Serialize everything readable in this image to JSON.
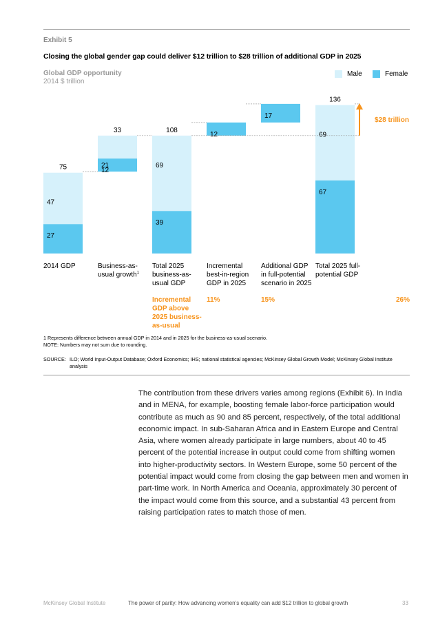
{
  "exhibit": {
    "label": "Exhibit 5",
    "title": "Closing the global gender gap could deliver $12 trillion to $28 trillion of additional GDP in 2025"
  },
  "colors": {
    "male": "#d6f1fb",
    "female": "#5bc8ef",
    "accent": "#f7941d",
    "text": "#000000"
  },
  "chart_data": {
    "type": "bar",
    "subtype": "waterfall",
    "title": "Global GDP opportunity",
    "unit": "2014 $ trillion",
    "legend": [
      "Male",
      "Female"
    ],
    "legend_position": "top-right",
    "categories": [
      "2014 GDP",
      "Business-as-usual growth",
      "Total 2025 business-as-usual GDP",
      "Incremental best-in-region GDP in 2025",
      "Additional GDP in full-potential scenario in 2025",
      "Total 2025 full-potential GDP"
    ],
    "category_lines": [
      [
        "2014 GDP"
      ],
      [
        "Business-as-",
        "usual growth"
      ],
      [
        "Total 2025",
        "business-as-",
        "usual GDP"
      ],
      [
        "Incremental",
        "best-in-region",
        "GDP in 2025"
      ],
      [
        "Additional GDP",
        "in full-potential",
        "scenario in 2025"
      ],
      [
        "Total 2025 full-",
        "potential GDP"
      ]
    ],
    "category_footnote_marker": "1",
    "bars": [
      {
        "base": 0,
        "female": 27,
        "male": 47,
        "female_label": "27",
        "male_label": "47",
        "total_label": "75"
      },
      {
        "base": 75,
        "female": 12,
        "male": 21,
        "female_label": "12",
        "male_label": "21",
        "total_label": "33"
      },
      {
        "base": 0,
        "female": 39,
        "male": 69,
        "female_label": "39",
        "male_label": "69",
        "total_label": "108"
      },
      {
        "base": 108,
        "female": 12,
        "male": 0,
        "female_label": "12"
      },
      {
        "base": 120,
        "female": 17,
        "male": 0,
        "female_label": "17"
      },
      {
        "base": 0,
        "female": 67,
        "male": 69,
        "female_label": "67",
        "male_label": "69",
        "total_label": "136"
      }
    ],
    "ylim": [
      0,
      140
    ],
    "annotation": "$28 trillion",
    "incremental_row": {
      "label": [
        "Incremental",
        "GDP above",
        "2025 business-",
        "as-usual"
      ],
      "values": [
        "11%",
        "15%",
        "26%"
      ]
    }
  },
  "footnotes": {
    "note1": "1  Represents difference between annual GDP in 2014 and in 2025 for the business-as-usual scenario.",
    "note2": "NOTE: Numbers may not sum due to rounding.",
    "source_label": "SOURCE:",
    "source_text": "ILO; World Input-Output Database; Oxford Economics; IHS; national statistical agencies; McKinsey Global Growth Model; McKinsey Global Institute analysis"
  },
  "body": "The contribution from these drivers varies among regions (Exhibit 6). In India and in MENA, for example, boosting female labor-force participation would contribute as much as 90 and 85 percent, respectively, of the total additional economic impact. In sub-Saharan Africa and in Eastern Europe and Central Asia, where women already participate in large numbers, about 40 to 45 percent of the potential increase in output could come from shifting women into higher-productivity sectors. In Western Europe, some 50 percent of the potential impact would come from closing the gap between men and women in part-time work. In North America and Oceania, approximately 30 percent of the impact would come from this source, and a substantial 43 percent from raising participation rates to match those of men.",
  "footer": {
    "publisher": "McKinsey Global Institute",
    "report": "The power of parity: How advancing women’s equality can add $12 trillion to global growth",
    "page": "33"
  }
}
